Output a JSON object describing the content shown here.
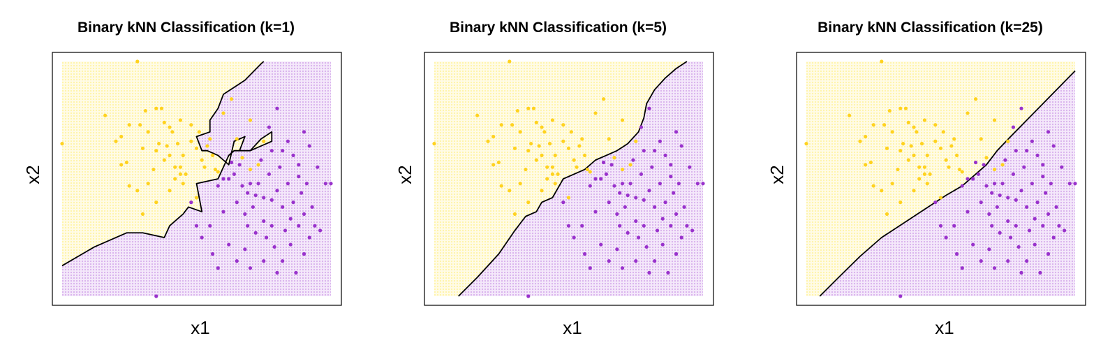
{
  "chart_data": [
    {
      "type": "scatter",
      "title": "Binary kNN Classification (k=1)",
      "xlabel": "x1",
      "ylabel": "x2",
      "k": 1,
      "xlim": [
        0,
        100
      ],
      "ylim": [
        0,
        100
      ],
      "axes_ticks": "none",
      "background": "prediction grid (yellow = class 0, purple = class 1)",
      "boundary": [
        [
          0,
          13
        ],
        [
          12,
          21
        ],
        [
          24,
          27
        ],
        [
          30,
          27
        ],
        [
          34,
          26
        ],
        [
          38,
          25
        ],
        [
          40,
          30
        ],
        [
          45,
          35
        ],
        [
          47,
          38
        ],
        [
          52,
          36
        ],
        [
          50,
          48
        ],
        [
          58,
          50
        ],
        [
          62,
          60
        ],
        [
          64,
          62
        ],
        [
          70,
          62
        ],
        [
          74,
          67
        ],
        [
          78,
          70
        ],
        [
          78,
          66
        ],
        [
          70,
          62
        ],
        [
          66,
          62
        ],
        [
          68,
          68
        ],
        [
          64,
          66
        ],
        [
          62,
          56
        ],
        [
          60,
          58
        ],
        [
          58,
          60
        ],
        [
          54,
          62
        ],
        [
          52,
          62
        ],
        [
          50,
          68
        ],
        [
          55,
          70
        ],
        [
          55,
          75
        ],
        [
          58,
          80
        ],
        [
          60,
          86
        ],
        [
          68,
          92
        ],
        [
          74,
          99
        ],
        [
          75,
          100
        ]
      ],
      "colors": {
        "class0": "#FFD21F",
        "class1": "#9932CC",
        "grid0": "#FFF3A6",
        "grid1": "#D8B0EC",
        "boundary": "#000000"
      },
      "legend": "none"
    },
    {
      "type": "scatter",
      "title": "Binary kNN Classification (k=5)",
      "xlabel": "x1",
      "ylabel": "x2",
      "k": 5,
      "xlim": [
        0,
        100
      ],
      "ylim": [
        0,
        100
      ],
      "axes_ticks": "none",
      "background": "prediction grid (yellow = class 0, purple = class 1)",
      "boundary": [
        [
          9,
          0
        ],
        [
          16,
          8
        ],
        [
          24,
          18
        ],
        [
          30,
          28
        ],
        [
          34,
          34
        ],
        [
          38,
          36
        ],
        [
          40,
          40
        ],
        [
          44,
          42
        ],
        [
          46,
          46
        ],
        [
          48,
          50
        ],
        [
          52,
          52
        ],
        [
          56,
          54
        ],
        [
          60,
          58
        ],
        [
          64,
          60
        ],
        [
          68,
          62
        ],
        [
          72,
          65
        ],
        [
          76,
          70
        ],
        [
          78,
          76
        ],
        [
          79,
          82
        ],
        [
          82,
          88
        ],
        [
          86,
          93
        ],
        [
          90,
          97
        ],
        [
          94,
          100
        ]
      ],
      "colors": {
        "class0": "#FFD21F",
        "class1": "#9932CC",
        "grid0": "#FFF3A6",
        "grid1": "#D8B0EC",
        "boundary": "#000000"
      },
      "legend": "none"
    },
    {
      "type": "scatter",
      "title": "Binary kNN Classification (k=25)",
      "xlabel": "x1",
      "ylabel": "x2",
      "k": 25,
      "xlim": [
        0,
        100
      ],
      "ylim": [
        0,
        100
      ],
      "axes_ticks": "none",
      "background": "prediction grid (yellow = class 0, purple = class 1)",
      "boundary": [
        [
          5,
          0
        ],
        [
          12,
          8
        ],
        [
          20,
          17
        ],
        [
          28,
          25
        ],
        [
          36,
          31
        ],
        [
          44,
          37
        ],
        [
          52,
          43
        ],
        [
          58,
          47
        ],
        [
          63,
          52
        ],
        [
          67,
          56
        ],
        [
          71,
          62
        ],
        [
          76,
          68
        ],
        [
          82,
          75
        ],
        [
          88,
          82
        ],
        [
          94,
          89
        ],
        [
          100,
          96
        ]
      ],
      "colors": {
        "class0": "#FFD21F",
        "class1": "#9932CC",
        "grid0": "#FFF3A6",
        "grid1": "#D8B0EC",
        "boundary": "#000000"
      },
      "legend": "none"
    }
  ],
  "points": {
    "class0": [
      [
        0,
        65
      ],
      [
        28,
        100
      ],
      [
        16,
        77
      ],
      [
        20,
        66
      ],
      [
        22,
        68
      ],
      [
        24,
        57
      ],
      [
        25,
        73
      ],
      [
        29,
        73
      ],
      [
        30,
        63
      ],
      [
        31,
        79
      ],
      [
        32,
        70
      ],
      [
        34,
        54
      ],
      [
        35,
        62
      ],
      [
        35,
        80
      ],
      [
        36,
        65
      ],
      [
        37,
        80
      ],
      [
        38,
        74
      ],
      [
        38,
        58
      ],
      [
        39,
        64
      ],
      [
        40,
        72
      ],
      [
        40,
        60
      ],
      [
        41,
        70
      ],
      [
        42,
        50
      ],
      [
        42,
        55
      ],
      [
        43,
        65
      ],
      [
        44,
        75
      ],
      [
        44,
        55
      ],
      [
        45,
        60
      ],
      [
        46,
        52
      ],
      [
        48,
        73
      ],
      [
        48,
        66
      ],
      [
        50,
        63
      ],
      [
        51,
        70
      ],
      [
        52,
        58
      ],
      [
        53,
        55
      ],
      [
        54,
        64
      ],
      [
        55,
        67
      ],
      [
        56,
        60
      ],
      [
        57,
        54
      ],
      [
        58,
        53
      ],
      [
        60,
        78
      ],
      [
        63,
        84
      ],
      [
        65,
        67
      ],
      [
        67,
        59
      ],
      [
        70,
        75
      ],
      [
        70,
        54
      ],
      [
        73,
        56
      ],
      [
        75,
        66
      ],
      [
        28,
        45
      ],
      [
        32,
        48
      ],
      [
        30,
        35
      ],
      [
        35,
        40
      ],
      [
        22,
        56
      ],
      [
        25,
        47
      ],
      [
        40,
        45
      ],
      [
        45,
        48
      ],
      [
        50,
        42
      ],
      [
        44,
        52
      ]
    ],
    "class1": [
      [
        35,
        0
      ],
      [
        58,
        47
      ],
      [
        60,
        50
      ],
      [
        62,
        50
      ],
      [
        63,
        57
      ],
      [
        64,
        52
      ],
      [
        65,
        40
      ],
      [
        66,
        56
      ],
      [
        67,
        47
      ],
      [
        68,
        35
      ],
      [
        69,
        30
      ],
      [
        69,
        44
      ],
      [
        70,
        48
      ],
      [
        71,
        38
      ],
      [
        72,
        27
      ],
      [
        72,
        43
      ],
      [
        73,
        48
      ],
      [
        74,
        58
      ],
      [
        75,
        42
      ],
      [
        75,
        32
      ],
      [
        76,
        25
      ],
      [
        77,
        52
      ],
      [
        78,
        41
      ],
      [
        78,
        30
      ],
      [
        79,
        21
      ],
      [
        80,
        45
      ],
      [
        81,
        55
      ],
      [
        82,
        38
      ],
      [
        82,
        15
      ],
      [
        83,
        28
      ],
      [
        84,
        48
      ],
      [
        85,
        33
      ],
      [
        85,
        22
      ],
      [
        86,
        40
      ],
      [
        87,
        10
      ],
      [
        88,
        30
      ],
      [
        88,
        51
      ],
      [
        89,
        44
      ],
      [
        90,
        18
      ],
      [
        90,
        35
      ],
      [
        91,
        48
      ],
      [
        92,
        25
      ],
      [
        93,
        38
      ],
      [
        94,
        30
      ],
      [
        95,
        55
      ],
      [
        96,
        28
      ],
      [
        98,
        48
      ],
      [
        100,
        48
      ],
      [
        60,
        36
      ],
      [
        55,
        30
      ],
      [
        52,
        25
      ],
      [
        56,
        18
      ],
      [
        58,
        12
      ],
      [
        62,
        22
      ],
      [
        65,
        15
      ],
      [
        68,
        20
      ],
      [
        70,
        12
      ],
      [
        75,
        15
      ],
      [
        80,
        10
      ],
      [
        82,
        62
      ],
      [
        84,
        66
      ],
      [
        86,
        60
      ],
      [
        88,
        56
      ],
      [
        90,
        70
      ],
      [
        92,
        64
      ],
      [
        78,
        62
      ],
      [
        80,
        80
      ],
      [
        77,
        72
      ],
      [
        50,
        30
      ],
      [
        48,
        40
      ]
    ]
  }
}
